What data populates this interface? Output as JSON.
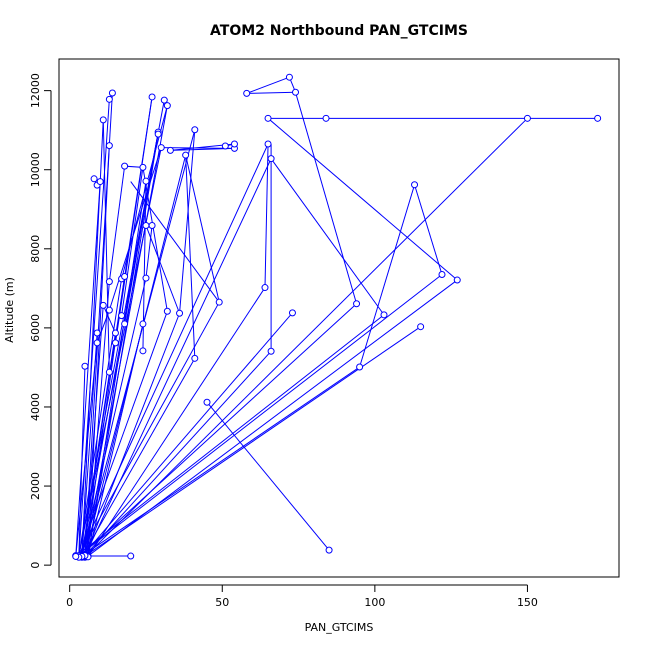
{
  "chart_data": {
    "type": "scatter",
    "title": "ATOM2 Northbound PAN_GTCIMS",
    "xlabel": "PAN_GTCIMS",
    "ylabel": "Altitude (m)",
    "xlim": [
      -3.5,
      180
    ],
    "ylim": [
      -300,
      12800
    ],
    "x_ticks": [
      0,
      50,
      100,
      150
    ],
    "y_ticks": [
      0,
      2000,
      4000,
      6000,
      8000,
      10000,
      12000
    ],
    "grid": false,
    "series": [
      {
        "name": "",
        "color": "#0000ff",
        "points": [
          [
            2,
            230
          ],
          [
            3,
            240
          ],
          [
            4,
            210
          ],
          [
            5,
            230
          ],
          [
            6,
            220
          ],
          [
            4,
            250
          ],
          [
            3,
            220
          ],
          [
            5,
            200
          ],
          [
            4,
            240
          ],
          [
            6,
            230
          ],
          [
            3,
            210
          ],
          [
            2,
            240
          ],
          [
            5,
            220
          ],
          [
            4,
            200
          ],
          [
            3,
            230
          ],
          [
            6,
            210
          ],
          [
            5,
            240
          ],
          [
            4,
            220
          ],
          [
            3,
            200
          ],
          [
            2,
            220
          ],
          [
            20,
            230
          ],
          [
            85,
            380
          ],
          [
            5,
            5030
          ],
          [
            9,
            5620
          ],
          [
            9,
            5870
          ],
          [
            11,
            6570
          ],
          [
            13,
            4880
          ],
          [
            13,
            6450
          ],
          [
            13,
            7170
          ],
          [
            15,
            5620
          ],
          [
            15,
            5870
          ],
          [
            17,
            6310
          ],
          [
            18,
            6100
          ],
          [
            17,
            7240
          ],
          [
            18,
            7300
          ],
          [
            25,
            7260
          ],
          [
            24,
            6100
          ],
          [
            24,
            5420
          ],
          [
            32,
            6420
          ],
          [
            36,
            6370
          ],
          [
            41,
            5230
          ],
          [
            45,
            4120
          ],
          [
            49,
            6650
          ],
          [
            64,
            7020
          ],
          [
            66,
            5410
          ],
          [
            73,
            6380
          ],
          [
            94,
            6610
          ],
          [
            103,
            6330
          ],
          [
            115,
            6030
          ],
          [
            95,
            5010
          ],
          [
            122,
            7350
          ],
          [
            127,
            7210
          ],
          [
            113,
            9620
          ],
          [
            150,
            11300
          ],
          [
            173,
            11300
          ],
          [
            84,
            11300
          ],
          [
            65,
            11300
          ],
          [
            58,
            11930
          ],
          [
            72,
            12340
          ],
          [
            74,
            11960
          ],
          [
            8,
            9770
          ],
          [
            9,
            9610
          ],
          [
            10,
            9700
          ],
          [
            18,
            10090
          ],
          [
            24,
            10060
          ],
          [
            25,
            8590
          ],
          [
            27,
            8590
          ],
          [
            25,
            9710
          ],
          [
            11,
            11260
          ],
          [
            13,
            11780
          ],
          [
            14,
            11940
          ],
          [
            13,
            10610
          ],
          [
            27,
            11840
          ],
          [
            31,
            11760
          ],
          [
            32,
            11620
          ],
          [
            29,
            10950
          ],
          [
            29,
            10900
          ],
          [
            30,
            10560
          ],
          [
            33,
            10490
          ],
          [
            38,
            10370
          ],
          [
            41,
            11010
          ],
          [
            51,
            10600
          ],
          [
            54,
            10540
          ],
          [
            54,
            10650
          ],
          [
            65,
            10650
          ],
          [
            66,
            10280
          ]
        ],
        "path_segments": [
          [
            [
              3,
              240
            ],
            [
              5,
              5030
            ]
          ],
          [
            [
              2,
              230
            ],
            [
              9,
              5620
            ]
          ],
          [
            [
              4,
              210
            ],
            [
              9,
              5870
            ]
          ],
          [
            [
              5,
              230
            ],
            [
              11,
              6570
            ]
          ],
          [
            [
              6,
              220
            ],
            [
              13,
              7170
            ]
          ],
          [
            [
              4,
              250
            ],
            [
              15,
              5870
            ]
          ],
          [
            [
              3,
              220
            ],
            [
              17,
              7240
            ]
          ],
          [
            [
              5,
              200
            ],
            [
              18,
              7300
            ]
          ],
          [
            [
              4,
              240
            ],
            [
              25,
              7260
            ]
          ],
          [
            [
              6,
              230
            ],
            [
              24,
              6100
            ]
          ],
          [
            [
              3,
              210
            ],
            [
              32,
              6420
            ]
          ],
          [
            [
              5,
              220
            ],
            [
              36,
              6370
            ]
          ],
          [
            [
              4,
              200
            ],
            [
              41,
              5230
            ]
          ],
          [
            [
              3,
              230
            ],
            [
              49,
              6650
            ]
          ],
          [
            [
              6,
              210
            ],
            [
              64,
              7020
            ]
          ],
          [
            [
              5,
              240
            ],
            [
              66,
              5410
            ]
          ],
          [
            [
              4,
              220
            ],
            [
              73,
              6380
            ]
          ],
          [
            [
              3,
              200
            ],
            [
              94,
              6610
            ]
          ],
          [
            [
              2,
              220
            ],
            [
              103,
              6330
            ]
          ],
          [
            [
              5,
              230
            ],
            [
              115,
              6030
            ]
          ],
          [
            [
              4,
              230
            ],
            [
              95,
              5010
            ]
          ],
          [
            [
              3,
              240
            ],
            [
              122,
              7350
            ]
          ],
          [
            [
              6,
              230
            ],
            [
              127,
              7210
            ]
          ],
          [
            [
              5,
              210
            ],
            [
              150,
              11300
            ]
          ],
          [
            [
              2,
              240
            ],
            [
              10,
              9700
            ]
          ],
          [
            [
              4,
              230
            ],
            [
              11,
              11260
            ]
          ],
          [
            [
              3,
              220
            ],
            [
              13,
              11780
            ]
          ],
          [
            [
              5,
              200
            ],
            [
              14,
              11940
            ]
          ],
          [
            [
              6,
              220
            ],
            [
              13,
              10610
            ]
          ],
          [
            [
              4,
              210
            ],
            [
              27,
              11840
            ]
          ],
          [
            [
              3,
              240
            ],
            [
              31,
              11760
            ]
          ],
          [
            [
              5,
              220
            ],
            [
              32,
              11620
            ]
          ],
          [
            [
              4,
              200
            ],
            [
              29,
              10950
            ]
          ],
          [
            [
              6,
              210
            ],
            [
              29,
              10900
            ]
          ],
          [
            [
              3,
              230
            ],
            [
              30,
              10560
            ]
          ],
          [
            [
              5,
              240
            ],
            [
              38,
              10370
            ]
          ],
          [
            [
              4,
              220
            ],
            [
              41,
              11010
            ]
          ],
          [
            [
              3,
              210
            ],
            [
              65,
              10650
            ]
          ],
          [
            [
              5,
              230
            ],
            [
              66,
              10280
            ]
          ],
          [
            [
              6,
              230
            ],
            [
              25,
              9710
            ]
          ],
          [
            [
              2,
              230
            ],
            [
              20,
              230
            ]
          ],
          [
            [
              8,
              9770
            ],
            [
              9,
              9610
            ]
          ],
          [
            [
              9,
              9610
            ],
            [
              10,
              9700
            ]
          ],
          [
            [
              18,
              10090
            ],
            [
              24,
              10060
            ]
          ],
          [
            [
              25,
              8590
            ],
            [
              27,
              8590
            ]
          ],
          [
            [
              13,
              11780
            ],
            [
              14,
              11940
            ]
          ],
          [
            [
              31,
              11760
            ],
            [
              32,
              11620
            ]
          ],
          [
            [
              29,
              10950
            ],
            [
              29,
              10900
            ]
          ],
          [
            [
              33,
              10490
            ],
            [
              54,
              10540
            ]
          ],
          [
            [
              38,
              10370
            ],
            [
              49,
              6650
            ]
          ],
          [
            [
              41,
              11010
            ],
            [
              36,
              6370
            ]
          ],
          [
            [
              51,
              10600
            ],
            [
              54,
              10650
            ]
          ],
          [
            [
              65,
              11300
            ],
            [
              84,
              11300
            ]
          ],
          [
            [
              84,
              11300
            ],
            [
              150,
              11300
            ]
          ],
          [
            [
              150,
              11300
            ],
            [
              173,
              11300
            ]
          ],
          [
            [
              58,
              11930
            ],
            [
              72,
              12340
            ]
          ],
          [
            [
              72,
              12340
            ],
            [
              74,
              11960
            ]
          ],
          [
            [
              74,
              11960
            ],
            [
              94,
              6610
            ]
          ],
          [
            [
              65,
              10650
            ],
            [
              64,
              7020
            ]
          ],
          [
            [
              66,
              10280
            ],
            [
              103,
              6330
            ]
          ],
          [
            [
              113,
              9620
            ],
            [
              122,
              7350
            ]
          ],
          [
            [
              113,
              9620
            ],
            [
              95,
              5010
            ]
          ],
          [
            [
              65,
              11300
            ],
            [
              127,
              7210
            ]
          ],
          [
            [
              58,
              11930
            ],
            [
              74,
              11960
            ]
          ],
          [
            [
              45,
              4120
            ],
            [
              85,
              380
            ]
          ],
          [
            [
              25,
              9710
            ],
            [
              24,
              5420
            ]
          ],
          [
            [
              27,
              8590
            ],
            [
              25,
              7260
            ]
          ],
          [
            [
              18,
              10090
            ],
            [
              13,
              7170
            ]
          ],
          [
            [
              24,
              10060
            ],
            [
              17,
              6310
            ]
          ],
          [
            [
              27,
              11840
            ],
            [
              15,
              5620
            ]
          ],
          [
            [
              11,
              11260
            ],
            [
              13,
              4880
            ]
          ],
          [
            [
              29,
              10950
            ],
            [
              18,
              6100
            ]
          ],
          [
            [
              30,
              10560
            ],
            [
              13,
              6450
            ]
          ],
          [
            [
              32,
              11620
            ],
            [
              17,
              7240
            ]
          ],
          [
            [
              66,
              10650
            ],
            [
              66,
              5410
            ]
          ],
          [
            [
              38,
              10370
            ],
            [
              41,
              5230
            ]
          ],
          [
            [
              54,
              10650
            ],
            [
              33,
              10490
            ]
          ],
          [
            [
              30,
              10560
            ],
            [
              54,
              10540
            ]
          ],
          [
            [
              25,
              8590
            ],
            [
              36,
              6370
            ]
          ],
          [
            [
              20,
              9700
            ],
            [
              49,
              6650
            ]
          ],
          [
            [
              24,
              10060
            ],
            [
              32,
              6420
            ]
          ],
          [
            [
              11,
              6570
            ],
            [
              15,
              5870
            ]
          ],
          [
            [
              9,
              5620
            ],
            [
              13,
              6450
            ]
          ]
        ]
      }
    ]
  }
}
